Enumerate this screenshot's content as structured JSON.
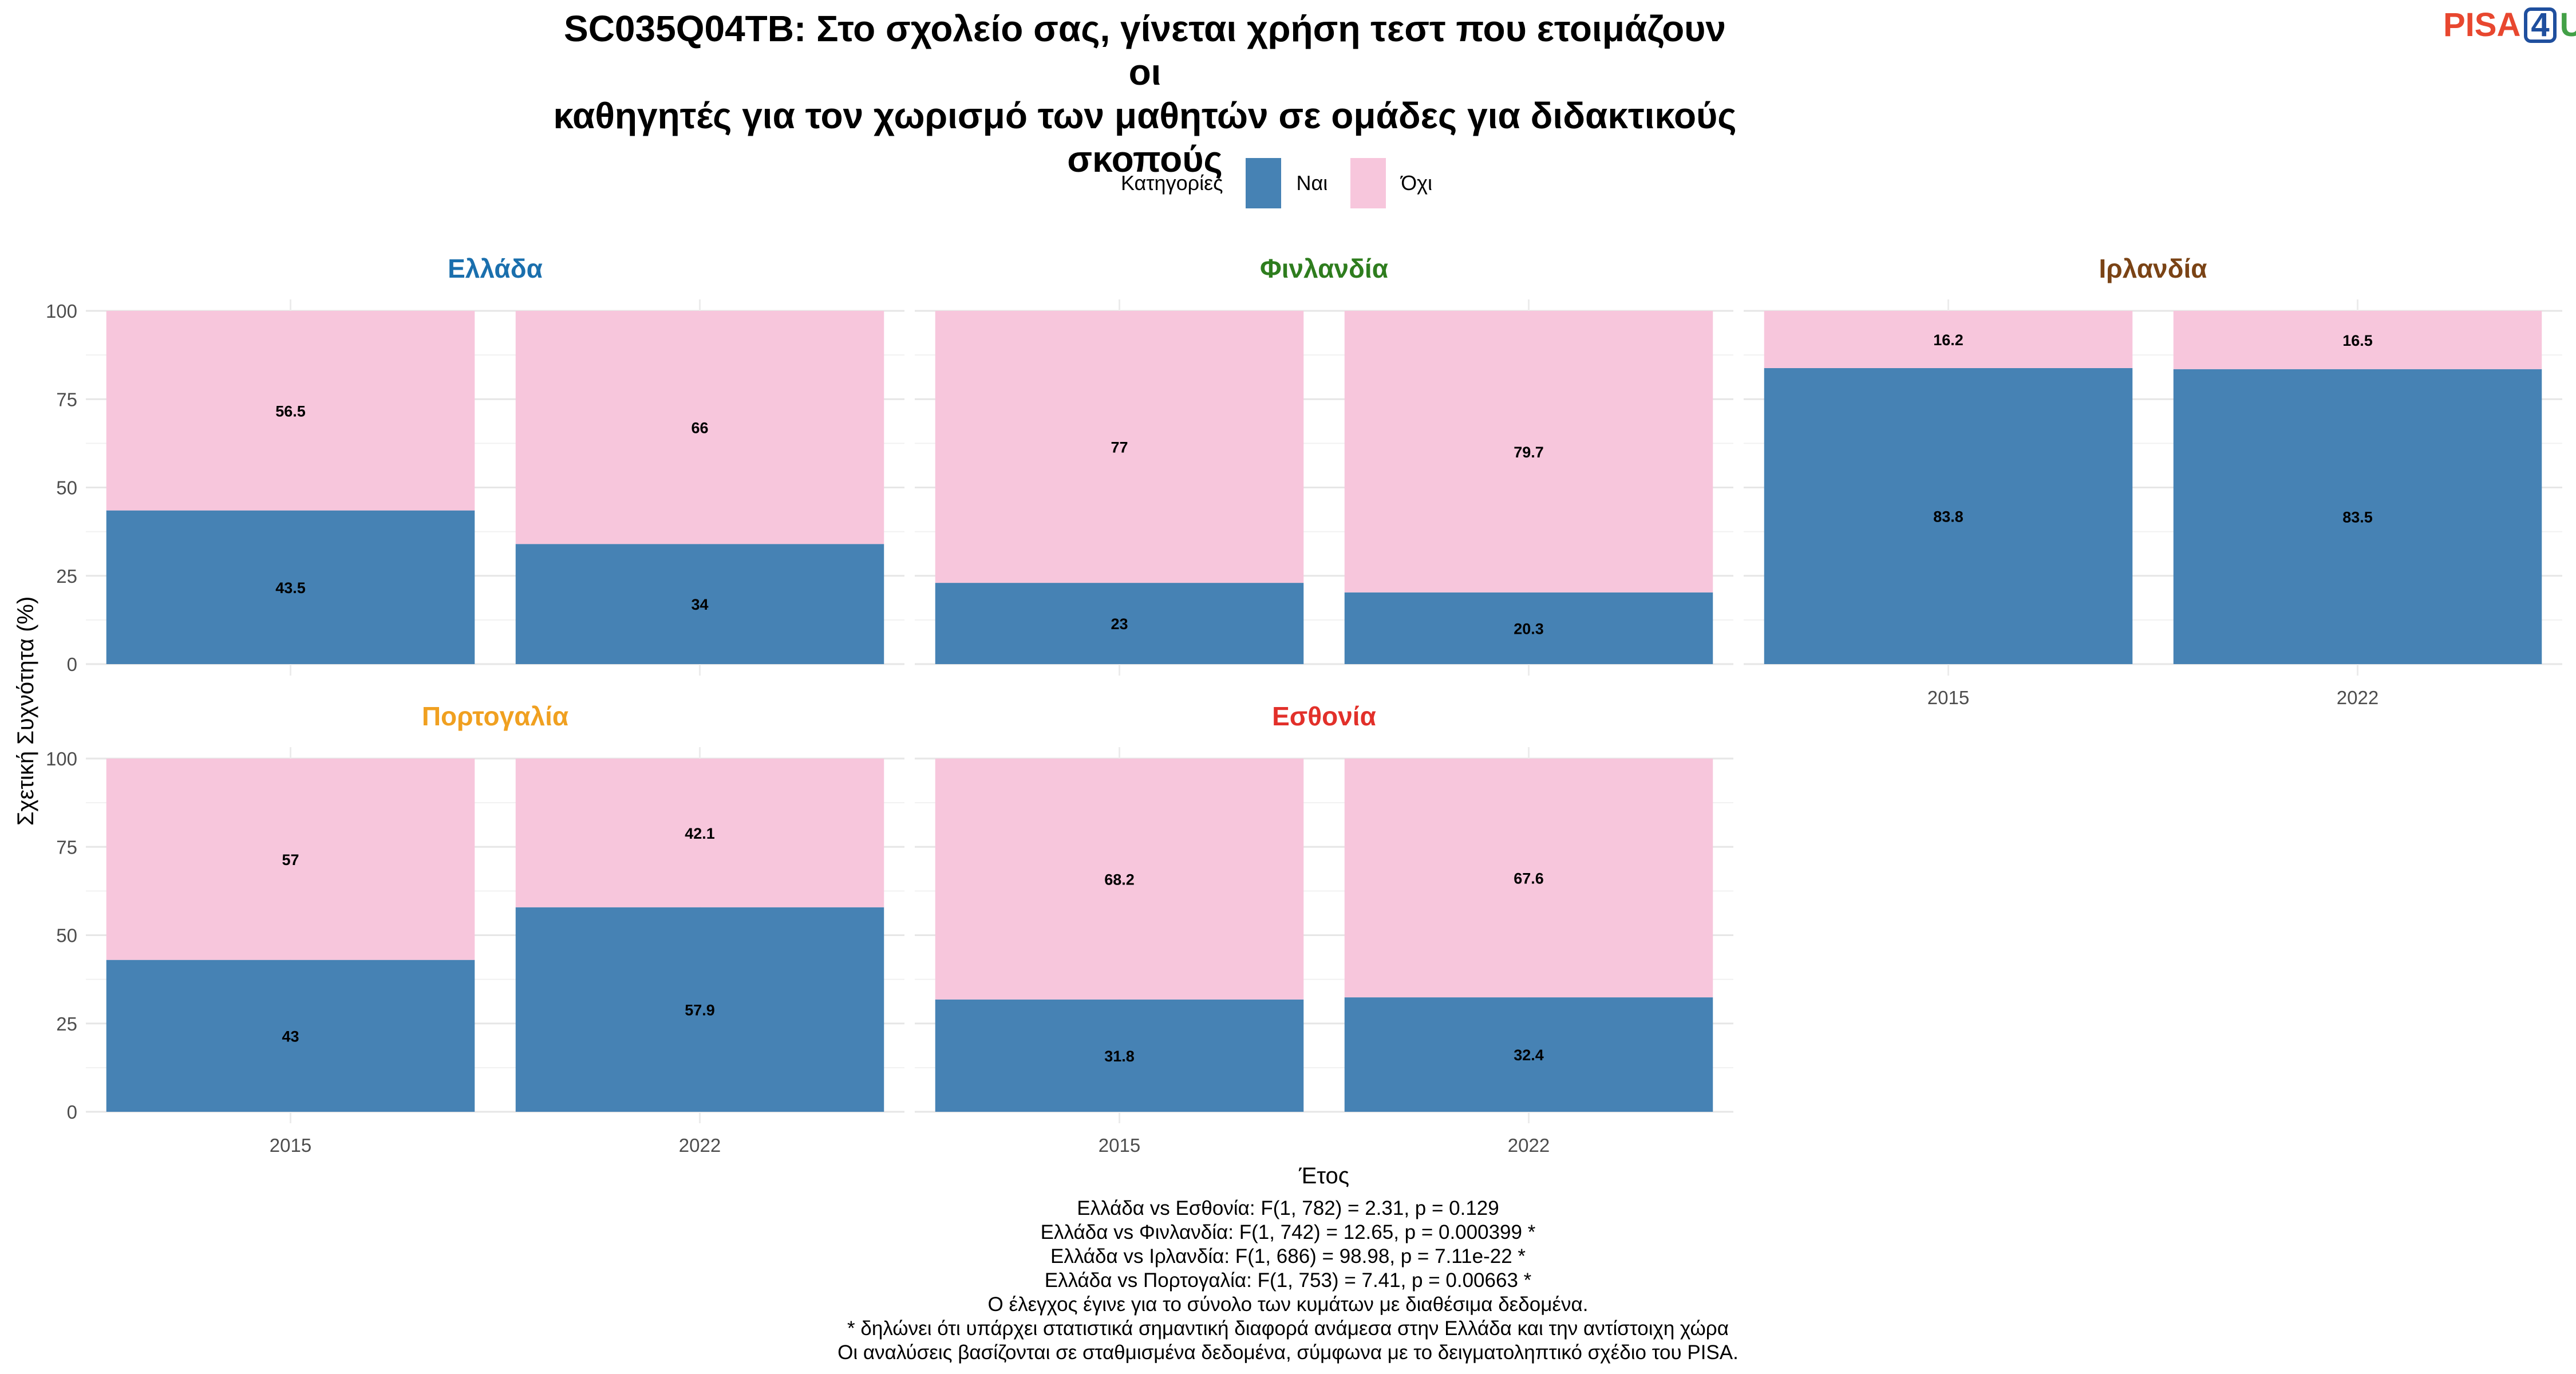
{
  "title_lines": [
    "SC035Q04TB: Στο σχολείο σας, γίνεται χρήση τεστ που ετοιμάζουν οι",
    "καθηγητές για τον χωρισμό των μαθητών σε ομάδες για διδακτικούς",
    "σκοπούς"
  ],
  "logo": {
    "part1": "PISA",
    "part2": "4",
    "part3": "U"
  },
  "legend": {
    "title": "Κατηγορίες",
    "yes": "Ναι",
    "no": "Όχι"
  },
  "colors": {
    "yes": "#4682b4",
    "no": "#f7c6dc"
  },
  "chart_data": {
    "type": "bar",
    "stacked": true,
    "xlabel": "Έτος",
    "ylabel": "Σχετική Συχνότητα (%)",
    "ylim": [
      0,
      100
    ],
    "yticks": [
      0,
      25,
      50,
      75,
      100
    ],
    "categories": [
      "2015",
      "2022"
    ],
    "legend_position": "top",
    "grid": true,
    "facets": [
      {
        "name": "Ελλάδα",
        "color": "#1a6fad",
        "years": [
          "2015",
          "2022"
        ],
        "yes": [
          43.5,
          34
        ],
        "no": [
          56.5,
          66
        ]
      },
      {
        "name": "Φινλανδία",
        "color": "#2e7d1e",
        "years": [
          "2015",
          "2022"
        ],
        "yes": [
          23,
          20.3
        ],
        "no": [
          77,
          79.7
        ]
      },
      {
        "name": "Ιρλανδία",
        "color": "#7a4315",
        "years": [
          "2015",
          "2022"
        ],
        "yes": [
          83.8,
          83.5
        ],
        "no": [
          16.2,
          16.5
        ]
      },
      {
        "name": "Πορτογαλία",
        "color": "#f0a020",
        "years": [
          "2015",
          "2022"
        ],
        "yes": [
          43,
          57.9
        ],
        "no": [
          57,
          42.1
        ]
      },
      {
        "name": "Εσθονία",
        "color": "#e2302a",
        "years": [
          "2015",
          "2022"
        ],
        "yes": [
          31.8,
          32.4
        ],
        "no": [
          68.2,
          67.6
        ]
      }
    ]
  },
  "notes": [
    "Ελλάδα vs Εσθονία: F(1, 782) = 2.31, p = 0.129",
    "Ελλάδα vs Φινλανδία: F(1, 742) = 12.65, p = 0.000399 *",
    "Ελλάδα vs Ιρλανδία: F(1, 686) = 98.98, p = 7.11e-22 *",
    "Ελλάδα vs Πορτογαλία: F(1, 753) = 7.41, p = 0.00663 *",
    "Ο έλεγχος έγινε για το σύνολο των κυμάτων με διαθέσιμα δεδομένα.",
    "* δηλώνει ότι υπάρχει στατιστικά σημαντική διαφορά ανάμεσα στην Ελλάδα και την αντίστοιχη χώρα",
    "Οι αναλύσεις βασίζονται σε σταθμισμένα δεδομένα, σύμφωνα με το δειγματοληπτικό σχέδιο του PISA."
  ]
}
